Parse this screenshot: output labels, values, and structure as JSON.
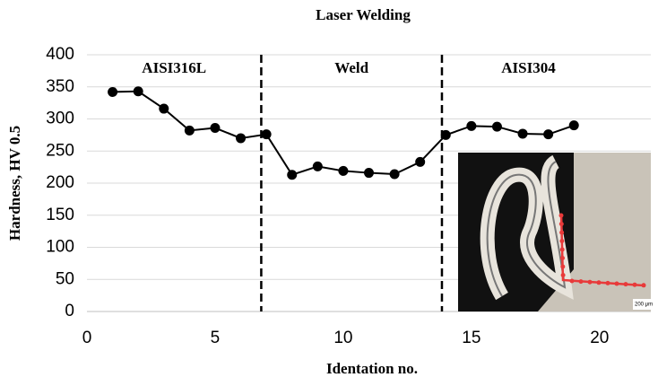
{
  "chart_data": {
    "type": "line",
    "title": "Laser Welding",
    "x_label": "Identation no.",
    "y_label": "Hardness, HV 0.5",
    "x": [
      1,
      2,
      3,
      4,
      5,
      6,
      7,
      8,
      9,
      10,
      11,
      12,
      13,
      14,
      15,
      16,
      17,
      18,
      19
    ],
    "series": [
      {
        "color": "#000000",
        "values": [
          342,
          343,
          316,
          282,
          286,
          270,
          276,
          213,
          226,
          219,
          216,
          214,
          233,
          275,
          289,
          288,
          277,
          276,
          290
        ]
      }
    ],
    "xlim": [
      0,
      22
    ],
    "ylim": [
      0,
      400
    ],
    "xticks": [
      0,
      5,
      10,
      15,
      20
    ],
    "yticks": [
      0,
      50,
      100,
      150,
      200,
      250,
      300,
      350,
      400
    ],
    "grid": true,
    "dividers": [
      6.8,
      13.85
    ],
    "regions": [
      "AISI316L",
      "Weld",
      "AISI304"
    ],
    "inset_scale_label": "200 μm"
  }
}
